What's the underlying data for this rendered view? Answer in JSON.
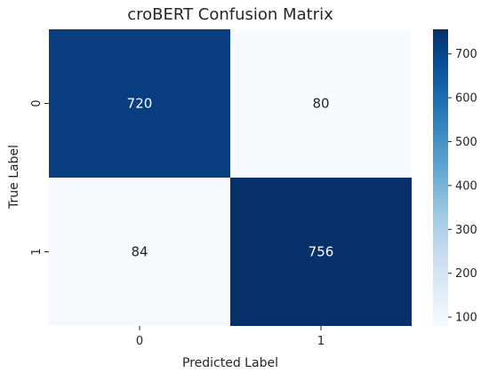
{
  "chart_data": {
    "type": "heatmap",
    "title": "croBERT Confusion Matrix",
    "xlabel": "Predicted Label",
    "ylabel": "True Label",
    "x_categories": [
      "0",
      "1"
    ],
    "y_categories": [
      "0",
      "1"
    ],
    "values": [
      [
        720,
        80
      ],
      [
        84,
        756
      ]
    ],
    "colormap": "Blues",
    "colorbar": {
      "range": [
        80,
        756
      ],
      "ticks": [
        100,
        200,
        300,
        400,
        500,
        600,
        700
      ]
    },
    "colors": {
      "low": "#f7fbff",
      "high": "#08306b"
    }
  }
}
